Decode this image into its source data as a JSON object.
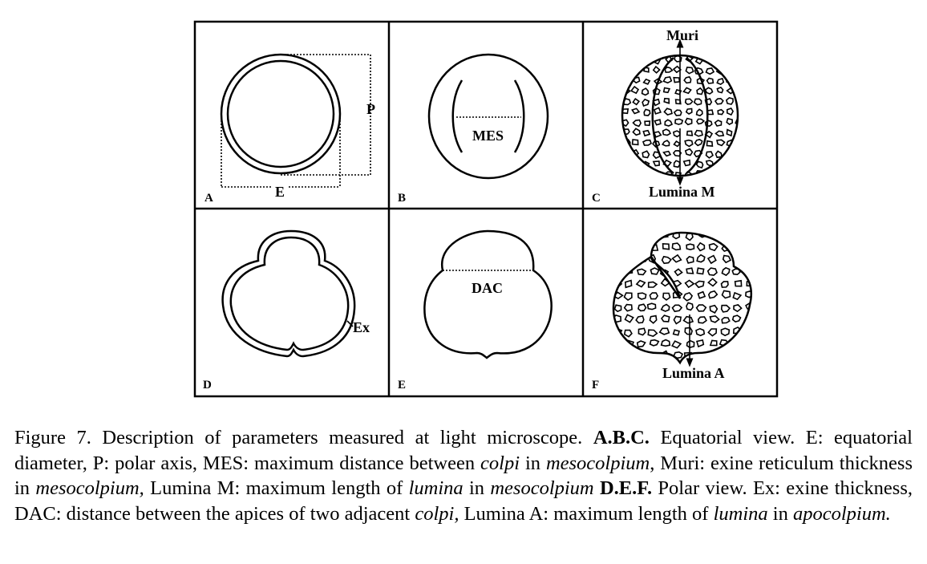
{
  "panels": {
    "A": {
      "letter": "A",
      "label_e": "E",
      "label_p": "P"
    },
    "B": {
      "letter": "B",
      "label": "MES"
    },
    "C": {
      "letter": "C",
      "label_top": "Muri",
      "label_bottom": "Lumina M"
    },
    "D": {
      "letter": "D",
      "label": "Ex"
    },
    "E": {
      "letter": "E",
      "label": "DAC"
    },
    "F": {
      "letter": "F",
      "label": "Lumina A"
    }
  },
  "caption": {
    "s1": "Figure 7. Description of parameters measured at light microscope. ",
    "s2": "A.B.C.",
    "s3": " Equatorial view. E: equatorial diameter, P: polar axis, MES: maximum distance between ",
    "s4": "colpi",
    "s5": " in ",
    "s6": "mesocolpium",
    "s7": ", Muri: exine reticulum thickness in ",
    "s8": "mesocolpium,",
    "s9": " Lumina M: maximum length of ",
    "s10": "lumina",
    "s11": " in ",
    "s12": "mesocolpium",
    "s13": " ",
    "s14": "D.E.F.",
    "s15": " Polar view. Ex: exine thickness, DAC: distance between the apices of two adjacent ",
    "s16": "colpi,",
    "s17": " Lumina A: maximum length of ",
    "s18": "lumina",
    "s19": " in ",
    "s20": "apocolpium."
  }
}
